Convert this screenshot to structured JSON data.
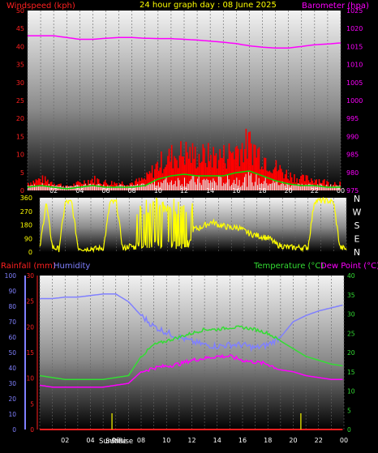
{
  "colors": {
    "background": "#000000",
    "wind": "#ff0000",
    "wind_avg": "#00cc00",
    "wind_gust_base": "#ffffff",
    "barometer": "#ff00ff",
    "direction": "#ffff00",
    "rainfall": "#ff0000",
    "humidity": "#8080ff",
    "temperature": "#33dd33",
    "dew_point": "#ff00ff",
    "title": "#ffff00",
    "sun": "#cccc00"
  },
  "header": {
    "windspeed_label": "Windspeed (kph)",
    "title": "24 hour graph day : 08 June 2025",
    "barometer_label": "Barometer (hpa)"
  },
  "middle": {
    "compass": [
      "N",
      "W",
      "S",
      "E",
      "N"
    ]
  },
  "bottom_header": {
    "rainfall_label": "Rainfall (mm)",
    "humidity_label": "Humidity",
    "temperature_label": "Temperature (°C)",
    "dewpoint_label": "Dew Point (°C)"
  },
  "sun_label": "SunRise",
  "sun_label2": "SunRise",
  "chart_data": [
    {
      "type": "line",
      "x_ticks": [
        "02",
        "04",
        "06",
        "08",
        "10",
        "12",
        "14",
        "16",
        "18",
        "20",
        "22",
        "00"
      ],
      "left_axis": {
        "ticks": [
          "0",
          "5",
          "10",
          "15",
          "20",
          "25",
          "30",
          "35",
          "40",
          "45",
          "50"
        ],
        "ylim": [
          0,
          50
        ]
      },
      "right_axis": {
        "ticks": [
          "975",
          "980",
          "985",
          "990",
          "995",
          "1000",
          "1005",
          "1010",
          "1015",
          "1020",
          "1025"
        ],
        "ylim": [
          975,
          1025
        ]
      },
      "series": [
        {
          "name": "Windspeed (kph)",
          "axis": "left",
          "x": [
            0,
            1,
            2,
            3,
            4,
            5,
            6,
            7,
            8,
            9,
            10,
            11,
            12,
            13,
            14,
            15,
            16,
            17,
            18,
            19,
            20,
            21,
            22,
            23,
            24
          ],
          "values": [
            2,
            3,
            2,
            1,
            2,
            3,
            2,
            2,
            2,
            3,
            7,
            9,
            10,
            9,
            9,
            9,
            11,
            12,
            9,
            6,
            4,
            3,
            3,
            2,
            2
          ]
        },
        {
          "name": "Barometer (hpa)",
          "axis": "right",
          "x": [
            0,
            1,
            2,
            3,
            4,
            5,
            6,
            7,
            8,
            9,
            10,
            11,
            12,
            13,
            14,
            15,
            16,
            17,
            18,
            19,
            20,
            21,
            22,
            23,
            24
          ],
          "values": [
            1018,
            1018,
            1018,
            1017.5,
            1017,
            1017,
            1017.3,
            1017.5,
            1017.5,
            1017.3,
            1017.2,
            1017.2,
            1017,
            1016.8,
            1016.5,
            1016.2,
            1015.8,
            1015.2,
            1014.8,
            1014.6,
            1014.6,
            1015,
            1015.5,
            1015.7,
            1016
          ]
        }
      ]
    },
    {
      "type": "line",
      "x_ticks": [
        "02",
        "04",
        "06",
        "08",
        "10",
        "12",
        "14",
        "16",
        "18",
        "20",
        "22",
        "00"
      ],
      "left_axis": {
        "ticks": [
          "0",
          "90",
          "180",
          "270",
          "360"
        ],
        "ylim": [
          0,
          360
        ]
      },
      "series": [
        {
          "name": "Wind direction",
          "x": [
            0,
            0.5,
            1,
            1.5,
            2,
            2.5,
            3,
            3.5,
            4,
            4.5,
            5,
            5.5,
            6,
            6.5,
            7,
            7.5,
            8,
            8.5,
            9,
            9.5,
            10,
            10.5,
            11,
            11.5,
            12,
            12.5,
            13,
            13.5,
            14,
            14.5,
            15,
            15.5,
            16,
            16.5,
            17,
            17.5,
            18,
            18.5,
            19,
            19.5,
            20,
            20.5,
            21,
            21.5,
            22,
            22.5,
            23,
            23.5,
            24
          ],
          "values": [
            20,
            330,
            30,
            20,
            330,
            330,
            30,
            20,
            25,
            20,
            30,
            330,
            330,
            20,
            40,
            30,
            340,
            320,
            120,
            300,
            60,
            280,
            200,
            80,
            150,
            160,
            180,
            200,
            180,
            170,
            160,
            165,
            140,
            120,
            110,
            100,
            90,
            50,
            40,
            30,
            30,
            30,
            30,
            340,
            340,
            340,
            330,
            30,
            20
          ]
        }
      ]
    },
    {
      "type": "line",
      "x_ticks": [
        "02",
        "04",
        "06",
        "08",
        "10",
        "12",
        "14",
        "16",
        "18",
        "20",
        "22",
        "00"
      ],
      "left_axis_humidity": {
        "ticks": [
          "0",
          "10",
          "20",
          "30",
          "40",
          "50",
          "60",
          "70",
          "80",
          "90",
          "100"
        ],
        "ylim": [
          0,
          100
        ]
      },
      "left_axis_rain": {
        "ticks": [
          "0",
          "5",
          "10",
          "15",
          "20",
          "25",
          "30"
        ],
        "ylim": [
          0,
          30
        ]
      },
      "right_axis": {
        "ticks": [
          "0",
          "5",
          "10",
          "15",
          "20",
          "25",
          "30",
          "35",
          "40"
        ],
        "ylim": [
          0,
          40
        ]
      },
      "series": [
        {
          "name": "Humidity",
          "axis": "humidity",
          "x": [
            0,
            1,
            2,
            3,
            4,
            5,
            6,
            7,
            8,
            9,
            10,
            11,
            12,
            13,
            14,
            15,
            16,
            17,
            18,
            19,
            20,
            21,
            22,
            23,
            24
          ],
          "values": [
            85,
            85,
            86,
            86,
            87,
            88,
            88,
            83,
            74,
            67,
            63,
            60,
            57,
            55,
            54,
            55,
            55,
            53,
            55,
            60,
            70,
            74,
            77,
            79,
            81
          ]
        },
        {
          "name": "Temperature (°C)",
          "axis": "right",
          "x": [
            0,
            1,
            2,
            3,
            4,
            5,
            6,
            7,
            8,
            9,
            10,
            11,
            12,
            13,
            14,
            15,
            16,
            17,
            18,
            19,
            20,
            21,
            22,
            23,
            24
          ],
          "values": [
            14,
            13.5,
            13,
            13,
            13,
            13,
            13.5,
            14,
            19,
            22,
            23,
            24,
            25,
            26,
            26,
            26.5,
            26.5,
            26,
            25,
            23,
            21,
            19,
            18,
            17,
            16.5
          ]
        },
        {
          "name": "Dew Point (°C)",
          "axis": "right",
          "x": [
            0,
            1,
            2,
            3,
            4,
            5,
            6,
            7,
            8,
            9,
            10,
            11,
            12,
            13,
            14,
            15,
            16,
            17,
            18,
            19,
            20,
            21,
            22,
            23,
            24
          ],
          "values": [
            11.5,
            11,
            11,
            11,
            11,
            11,
            11.5,
            12,
            15,
            16,
            16.5,
            17,
            18,
            18.5,
            19,
            19,
            18,
            17.5,
            17,
            15.5,
            15,
            14,
            13.5,
            13,
            13
          ]
        },
        {
          "name": "Rainfall (mm)",
          "axis": "rain",
          "x": [
            0,
            24
          ],
          "values": [
            0,
            0
          ]
        }
      ],
      "annotations": {
        "sunrise_x": 5.7,
        "sunset_x": 20.6
      }
    }
  ]
}
